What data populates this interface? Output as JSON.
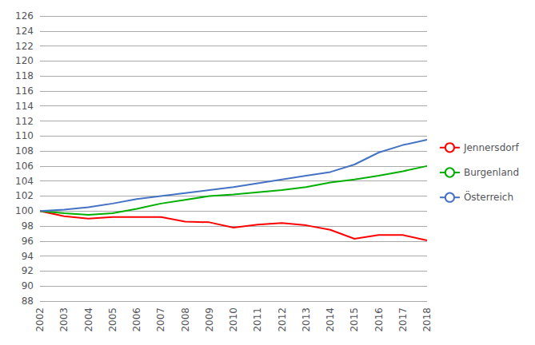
{
  "chart_data": {
    "type": "line",
    "x": [
      2002,
      2003,
      2004,
      2005,
      2006,
      2007,
      2008,
      2009,
      2010,
      2011,
      2012,
      2013,
      2014,
      2015,
      2016,
      2017,
      2018
    ],
    "series": [
      {
        "name": "Jennersdorf",
        "color": "#ff0000",
        "values": [
          100.0,
          99.3,
          99.0,
          99.2,
          99.2,
          99.2,
          98.6,
          98.5,
          97.8,
          98.2,
          98.4,
          98.1,
          97.5,
          96.3,
          96.8,
          96.8,
          96.1
        ]
      },
      {
        "name": "Burgenland",
        "color": "#00b000",
        "values": [
          100.0,
          99.7,
          99.5,
          99.7,
          100.3,
          101.0,
          101.5,
          102.0,
          102.2,
          102.5,
          102.8,
          103.2,
          103.8,
          104.2,
          104.7,
          105.3,
          106.0
        ]
      },
      {
        "name": "Österreich",
        "color": "#4472c4",
        "values": [
          100.0,
          100.2,
          100.5,
          101.0,
          101.6,
          102.0,
          102.4,
          102.8,
          103.2,
          103.7,
          104.2,
          104.7,
          105.2,
          106.2,
          107.8,
          108.8,
          109.5
        ]
      }
    ],
    "xlim": [
      2002,
      2018
    ],
    "xticks": [
      2002,
      2003,
      2004,
      2005,
      2006,
      2007,
      2008,
      2009,
      2010,
      2011,
      2012,
      2013,
      2014,
      2015,
      2016,
      2017,
      2018
    ],
    "ylim": [
      88,
      126
    ],
    "yticks": [
      88,
      90,
      92,
      94,
      96,
      98,
      100,
      102,
      104,
      106,
      108,
      110,
      112,
      114,
      116,
      118,
      120,
      122,
      124,
      126
    ],
    "grid": "y",
    "legend": "right"
  }
}
